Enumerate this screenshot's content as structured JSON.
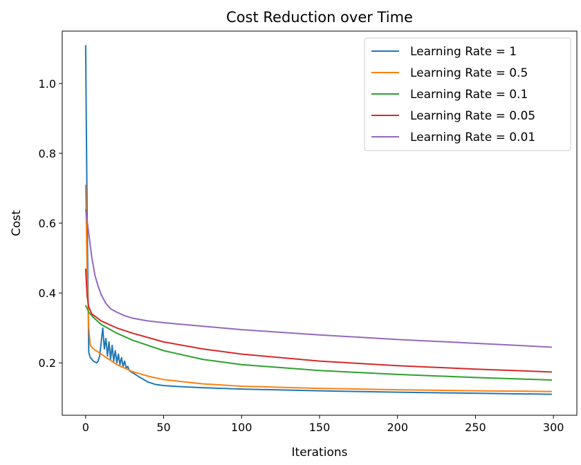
{
  "chart_data": {
    "type": "line",
    "title": "Cost Reduction over Time",
    "xlabel": "Iterations",
    "ylabel": "Cost",
    "xlim": [
      -15,
      315
    ],
    "ylim": [
      0.05,
      1.15
    ],
    "xticks": [
      0,
      50,
      100,
      150,
      200,
      250,
      300
    ],
    "yticks": [
      0.2,
      0.4,
      0.6,
      0.8,
      1.0
    ],
    "ytick_labels": [
      "0.2",
      "0.4",
      "0.6",
      "0.8",
      "1.0"
    ],
    "grid": false,
    "legend_position": "top-right",
    "series": [
      {
        "name": "Learning Rate = 1",
        "color": "#1f77b4",
        "points": [
          [
            0,
            1.11
          ],
          [
            1,
            0.6
          ],
          [
            2,
            0.23
          ],
          [
            3,
            0.215
          ],
          [
            5,
            0.205
          ],
          [
            7,
            0.2
          ],
          [
            8,
            0.205
          ],
          [
            9,
            0.22
          ],
          [
            10,
            0.26
          ],
          [
            11,
            0.3
          ],
          [
            12,
            0.24
          ],
          [
            13,
            0.27
          ],
          [
            14,
            0.22
          ],
          [
            15,
            0.26
          ],
          [
            16,
            0.21
          ],
          [
            17,
            0.25
          ],
          [
            18,
            0.205
          ],
          [
            19,
            0.235
          ],
          [
            20,
            0.2
          ],
          [
            21,
            0.225
          ],
          [
            22,
            0.195
          ],
          [
            23,
            0.215
          ],
          [
            24,
            0.19
          ],
          [
            25,
            0.205
          ],
          [
            26,
            0.185
          ],
          [
            27,
            0.19
          ],
          [
            28,
            0.178
          ],
          [
            30,
            0.172
          ],
          [
            35,
            0.158
          ],
          [
            40,
            0.145
          ],
          [
            45,
            0.138
          ],
          [
            50,
            0.135
          ],
          [
            60,
            0.132
          ],
          [
            75,
            0.129
          ],
          [
            100,
            0.125
          ],
          [
            150,
            0.12
          ],
          [
            200,
            0.116
          ],
          [
            250,
            0.113
          ],
          [
            299,
            0.11
          ]
        ]
      },
      {
        "name": "Learning Rate = 0.5",
        "color": "#ff7f0e",
        "points": [
          [
            0,
            0.71
          ],
          [
            1,
            0.45
          ],
          [
            2,
            0.3
          ],
          [
            3,
            0.25
          ],
          [
            5,
            0.24
          ],
          [
            10,
            0.225
          ],
          [
            20,
            0.195
          ],
          [
            30,
            0.175
          ],
          [
            40,
            0.162
          ],
          [
            50,
            0.152
          ],
          [
            75,
            0.14
          ],
          [
            100,
            0.133
          ],
          [
            150,
            0.127
          ],
          [
            200,
            0.123
          ],
          [
            250,
            0.12
          ],
          [
            299,
            0.118
          ]
        ]
      },
      {
        "name": "Learning Rate = 0.1",
        "color": "#2ca02c",
        "points": [
          [
            0,
            0.365
          ],
          [
            2,
            0.345
          ],
          [
            5,
            0.33
          ],
          [
            10,
            0.31
          ],
          [
            20,
            0.285
          ],
          [
            30,
            0.265
          ],
          [
            50,
            0.235
          ],
          [
            75,
            0.21
          ],
          [
            100,
            0.195
          ],
          [
            150,
            0.178
          ],
          [
            200,
            0.167
          ],
          [
            250,
            0.158
          ],
          [
            299,
            0.151
          ]
        ]
      },
      {
        "name": "Learning Rate = 0.05",
        "color": "#d62728",
        "points": [
          [
            0,
            0.47
          ],
          [
            1,
            0.39
          ],
          [
            2,
            0.36
          ],
          [
            4,
            0.34
          ],
          [
            7,
            0.33
          ],
          [
            10,
            0.32
          ],
          [
            20,
            0.3
          ],
          [
            30,
            0.285
          ],
          [
            50,
            0.26
          ],
          [
            75,
            0.24
          ],
          [
            100,
            0.225
          ],
          [
            150,
            0.205
          ],
          [
            200,
            0.192
          ],
          [
            250,
            0.182
          ],
          [
            299,
            0.174
          ]
        ]
      },
      {
        "name": "Learning Rate = 0.01",
        "color": "#9467bd",
        "points": [
          [
            0,
            0.64
          ],
          [
            2,
            0.57
          ],
          [
            4,
            0.5
          ],
          [
            6,
            0.45
          ],
          [
            8,
            0.42
          ],
          [
            10,
            0.395
          ],
          [
            13,
            0.37
          ],
          [
            16,
            0.355
          ],
          [
            20,
            0.345
          ],
          [
            25,
            0.335
          ],
          [
            30,
            0.328
          ],
          [
            40,
            0.32
          ],
          [
            50,
            0.315
          ],
          [
            75,
            0.305
          ],
          [
            100,
            0.295
          ],
          [
            150,
            0.28
          ],
          [
            200,
            0.267
          ],
          [
            250,
            0.256
          ],
          [
            299,
            0.245
          ]
        ]
      }
    ]
  }
}
